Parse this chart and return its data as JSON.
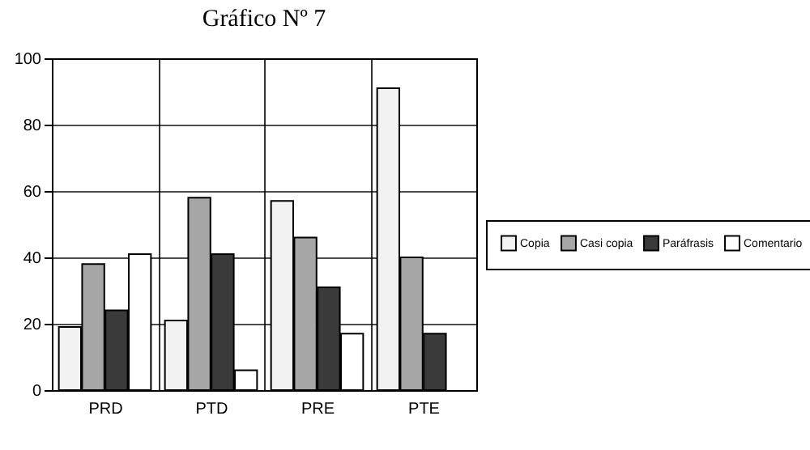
{
  "chart_data": {
    "type": "bar",
    "title": "Gráfico Nº 7",
    "categories": [
      "PRD",
      "PTD",
      "PRE",
      "PTE"
    ],
    "series": [
      {
        "name": "Copia",
        "color": "#f2f2f2",
        "values": [
          19,
          21,
          57,
          91
        ]
      },
      {
        "name": "Casi copia",
        "color": "#a6a6a6",
        "values": [
          38,
          58,
          46,
          40
        ]
      },
      {
        "name": "Paráfrasis",
        "color": "#3a3a3a",
        "values": [
          24,
          41,
          31,
          17
        ]
      },
      {
        "name": "Comentario",
        "color": "#ffffff",
        "values": [
          41,
          6,
          17,
          null
        ]
      }
    ],
    "ylim": [
      0,
      100
    ],
    "yticks": [
      0,
      20,
      40,
      60,
      80,
      100
    ],
    "grid": true,
    "legend": "right"
  }
}
